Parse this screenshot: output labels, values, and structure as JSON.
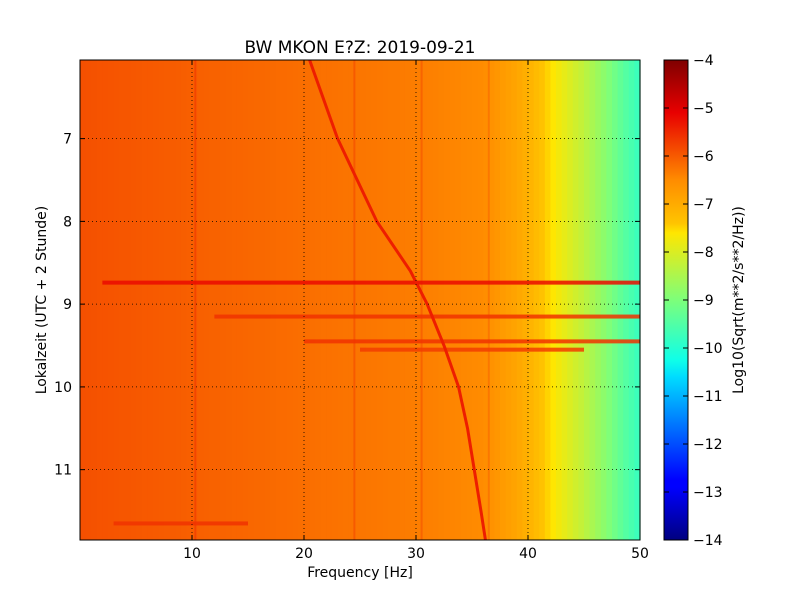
{
  "chart_data": {
    "type": "heatmap",
    "title": "BW MKON E?Z: 2019-09-21",
    "xlabel": "Frequency [Hz]",
    "ylabel": "Lokalzeit (UTC + 2 Stunde)",
    "xlim": [
      0,
      50
    ],
    "ylim": [
      6.05,
      11.85
    ],
    "y_inverted": true,
    "x_ticks": [
      10,
      20,
      30,
      40,
      50
    ],
    "x_tick_labels": [
      "10",
      "20",
      "30",
      "40",
      "50"
    ],
    "y_ticks": [
      7,
      8,
      9,
      10,
      11
    ],
    "y_tick_labels": [
      "7",
      "8",
      "9",
      "10",
      "11"
    ],
    "grid": true,
    "colormap": "jet",
    "colorbar": {
      "label": "Log10(Sqrt(m**2/s**2/Hz))",
      "range": [
        -14,
        -4
      ],
      "ticks": [
        -4,
        -5,
        -6,
        -7,
        -8,
        -9,
        -10,
        -11,
        -12,
        -13,
        -14
      ],
      "tick_labels": [
        "−4",
        "−5",
        "−6",
        "−7",
        "−8",
        "−9",
        "−10",
        "−11",
        "−12",
        "−13",
        "−14"
      ]
    },
    "spectrum_profile": {
      "frequency_hz": [
        0,
        10,
        20,
        30,
        36,
        39,
        41,
        43,
        45,
        47,
        48.5,
        50
      ],
      "level": [
        -5.9,
        -6.05,
        -6.2,
        -6.35,
        -6.5,
        -6.9,
        -7.3,
        -7.8,
        -8.3,
        -8.9,
        -9.4,
        -9.8
      ]
    },
    "features": {
      "drifting_line": {
        "time_h": [
          6.0,
          7.0,
          8.0,
          8.6,
          9.0,
          9.5,
          10.0,
          10.5,
          11.0,
          11.5,
          11.85
        ],
        "frequency_hz": [
          20.5,
          23.0,
          26.5,
          29.5,
          31.0,
          32.5,
          33.8,
          34.6,
          35.2,
          35.8,
          36.2
        ]
      },
      "steady_lines_hz": [
        10.3,
        24.5,
        30.5,
        36.5
      ],
      "broadband_events": [
        {
          "time_h": 8.74,
          "freq_range": [
            2,
            50
          ],
          "level": -5.2
        },
        {
          "time_h": 9.15,
          "freq_range": [
            12,
            50
          ],
          "level": -5.6
        },
        {
          "time_h": 9.45,
          "freq_range": [
            20,
            50
          ],
          "level": -5.6
        },
        {
          "time_h": 9.55,
          "freq_range": [
            25,
            45
          ],
          "level": -5.7
        },
        {
          "time_h": 11.65,
          "freq_range": [
            3,
            15
          ],
          "level": -5.6
        }
      ]
    }
  }
}
